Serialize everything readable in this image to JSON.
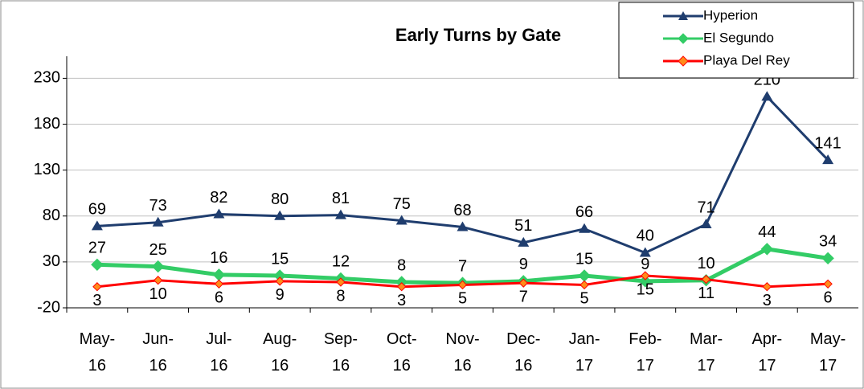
{
  "chart_data": {
    "type": "line",
    "title": "Early Turns by Gate",
    "categories": [
      "May-16",
      "Jun-16",
      "Jul-16",
      "Aug-16",
      "Sep-16",
      "Oct-16",
      "Nov-16",
      "Dec-16",
      "Jan-17",
      "Feb-17",
      "Mar-17",
      "Apr-17",
      "May-17"
    ],
    "series": [
      {
        "name": "Hyperion",
        "color": "#1f3d6e",
        "marker": "triangle",
        "values": [
          69,
          73,
          82,
          80,
          81,
          75,
          68,
          51,
          66,
          40,
          71,
          210,
          141
        ]
      },
      {
        "name": "El Segundo",
        "color": "#33cc66",
        "marker": "diamond",
        "values": [
          27,
          25,
          16,
          15,
          12,
          8,
          7,
          9,
          15,
          9,
          10,
          44,
          34
        ]
      },
      {
        "name": "Playa Del Rey",
        "color": "#ff0000",
        "marker": "diamond",
        "values": [
          3,
          10,
          6,
          9,
          8,
          3,
          5,
          7,
          5,
          15,
          11,
          3,
          6
        ]
      }
    ],
    "ylim": [
      -20,
      254
    ],
    "yticks": [
      -20,
      30,
      80,
      130,
      180,
      230
    ],
    "grid": true,
    "legend": "top-right"
  }
}
